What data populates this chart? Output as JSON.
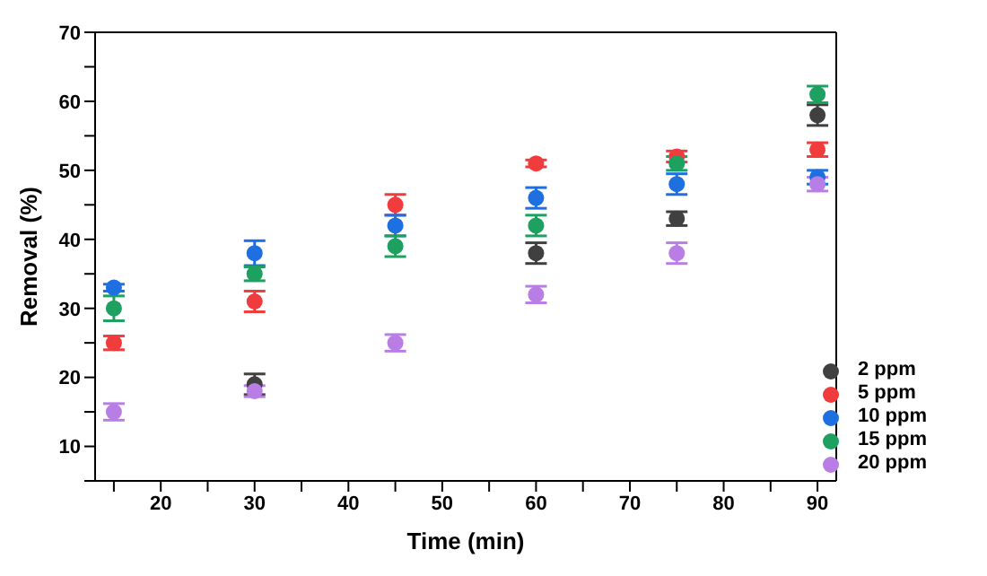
{
  "chart_data": {
    "type": "scatter",
    "xlabel": "Time (min)",
    "ylabel": "Removal (%)",
    "x": [
      15,
      30,
      45,
      60,
      75,
      90
    ],
    "xlim": [
      13,
      92
    ],
    "xticks": [
      {
        "value": 15,
        "label": null
      },
      20,
      {
        "value": 25,
        "label": null
      },
      30,
      {
        "value": 35,
        "label": null
      },
      40,
      {
        "value": 45,
        "label": null
      },
      50,
      {
        "value": 55,
        "label": null
      },
      60,
      {
        "value": 65,
        "label": null
      },
      70,
      {
        "value": 75,
        "label": null
      },
      80,
      {
        "value": 85,
        "label": null
      },
      90
    ],
    "ylim": [
      5,
      70
    ],
    "yticks": [
      {
        "value": 5,
        "label": null
      },
      10,
      {
        "value": 15,
        "label": null
      },
      20,
      {
        "value": 25,
        "label": null
      },
      30,
      {
        "value": 35,
        "label": null
      },
      40,
      {
        "value": 45,
        "label": null
      },
      50,
      {
        "value": 55,
        "label": null
      },
      60,
      {
        "value": 65,
        "label": null
      },
      70
    ],
    "series": [
      {
        "name": "2 ppm",
        "color": "#404040",
        "values": [
          null,
          19,
          null,
          38,
          43,
          58
        ],
        "errors": [
          null,
          1.5,
          null,
          1.5,
          1,
          1.5
        ]
      },
      {
        "name": "5 ppm",
        "color": "#f03c3c",
        "values": [
          25,
          31,
          45,
          51,
          52,
          53
        ],
        "errors": [
          1,
          1.5,
          1.5,
          0.5,
          0.8,
          1
        ]
      },
      {
        "name": "10 ppm",
        "color": "#1e6fe0",
        "values": [
          33,
          38,
          42,
          46,
          48,
          49
        ],
        "errors": [
          0.5,
          1.8,
          1.5,
          1.5,
          1.5,
          1
        ]
      },
      {
        "name": "15 ppm",
        "color": "#1ea060",
        "values": [
          30,
          35,
          39,
          42,
          51,
          61
        ],
        "errors": [
          1.8,
          1,
          1.5,
          1.5,
          1,
          1.2
        ]
      },
      {
        "name": "20 ppm",
        "color": "#b97ee6",
        "values": [
          15,
          18,
          25,
          32,
          38,
          48
        ],
        "errors": [
          1.2,
          0.8,
          1.2,
          1.2,
          1.5,
          1
        ]
      }
    ],
    "legend": "bottom right",
    "marker": "circle",
    "grid": false
  }
}
